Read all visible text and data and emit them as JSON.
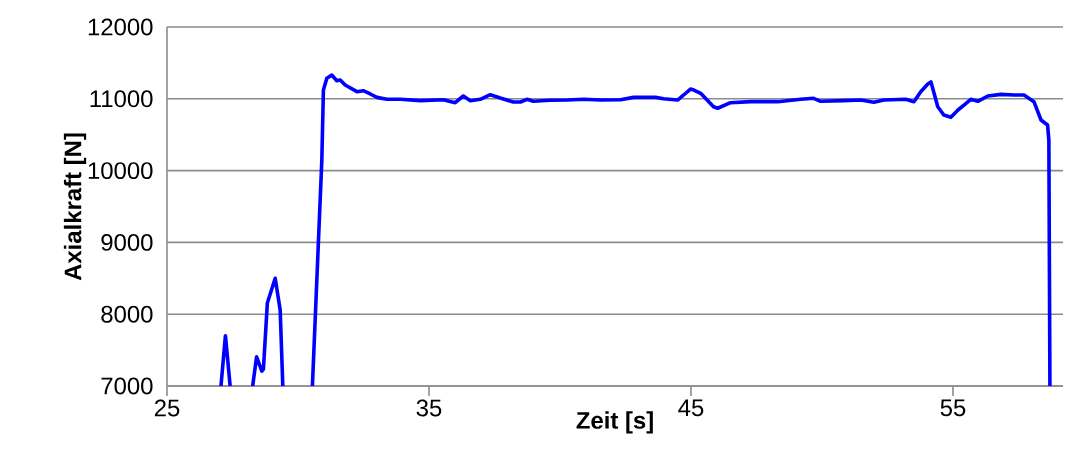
{
  "chart_data": {
    "type": "line",
    "xlabel": "Zeit [s]",
    "ylabel": "Axialkraft  [N]",
    "xlim": [
      25,
      59.2
    ],
    "xticks": [
      25,
      35,
      45,
      55
    ],
    "ylim": [
      7000,
      12000
    ],
    "yticks": [
      7000,
      8000,
      9000,
      10000,
      11000,
      12000
    ],
    "grid": "y",
    "legend": false,
    "marker": "none",
    "line_style": "solid",
    "x": [
      27.06,
      27.23,
      27.41,
      27.5,
      28.27,
      28.42,
      28.62,
      28.68,
      28.83,
      29.13,
      29.32,
      29.42,
      30.0,
      30.55,
      30.91,
      30.97,
      31.1,
      31.29,
      31.48,
      31.61,
      31.8,
      32.25,
      32.49,
      32.76,
      33.01,
      33.39,
      33.9,
      34.67,
      35.55,
      36.0,
      36.31,
      36.58,
      36.96,
      37.34,
      37.72,
      38.22,
      38.49,
      38.74,
      38.98,
      39.63,
      40.29,
      40.9,
      41.55,
      42.31,
      42.81,
      43.65,
      43.95,
      44.49,
      44.72,
      44.98,
      45.11,
      45.37,
      45.86,
      46.02,
      46.51,
      47.28,
      48.31,
      49.19,
      49.68,
      49.95,
      50.83,
      51.48,
      51.98,
      52.36,
      53.2,
      53.51,
      53.77,
      54.04,
      54.16,
      54.42,
      54.65,
      54.92,
      55.19,
      55.42,
      55.68,
      55.95,
      56.33,
      56.83,
      57.33,
      57.71,
      58.09,
      58.36,
      58.61,
      58.66,
      58.7
    ],
    "series": [
      {
        "color": "#0000ff",
        "values": [
          7000,
          7700,
          7000,
          null,
          7000,
          7407,
          7208,
          7236,
          8155,
          8500,
          8058,
          7000,
          null,
          7000,
          10147,
          11122,
          11285,
          11331,
          11252,
          11262,
          11192,
          11099,
          11113,
          11067,
          11020,
          10993,
          10993,
          10974,
          10987,
          10946,
          11039,
          10974,
          10993,
          11057,
          11011,
          10955,
          10955,
          10993,
          10965,
          10979,
          10983,
          10993,
          10983,
          10987,
          11020,
          11020,
          11001,
          10983,
          11053,
          11136,
          11122,
          11076,
          10890,
          10868,
          10946,
          10960,
          10960,
          10993,
          11007,
          10965,
          10974,
          10983,
          10951,
          10983,
          10993,
          10960,
          11099,
          11206,
          11234,
          10890,
          10774,
          10742,
          10844,
          10913,
          10993,
          10965,
          11039,
          11062,
          11053,
          11053,
          10960,
          10705,
          10635,
          10426,
          7000
        ]
      }
    ]
  }
}
